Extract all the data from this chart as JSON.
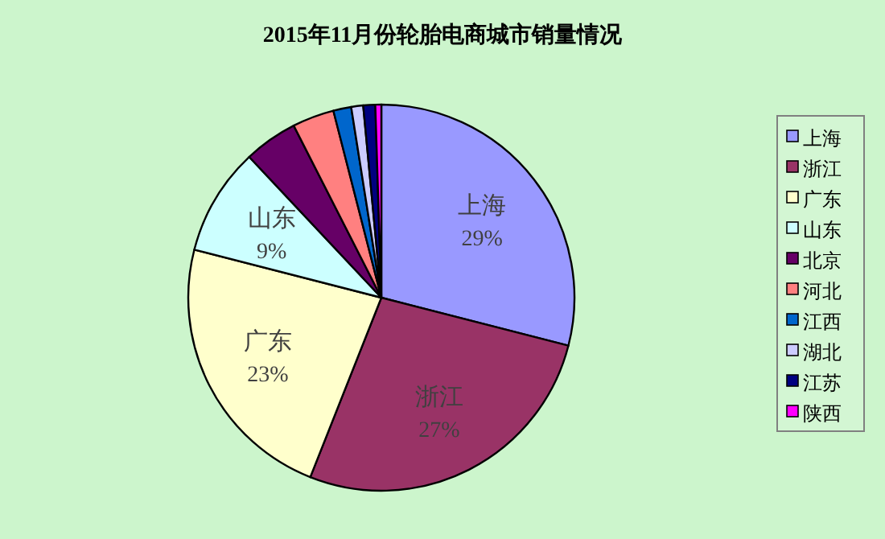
{
  "chart_data": {
    "type": "pie",
    "title": "2015年11月份轮胎电商城市销量情况",
    "categories": [
      "上海",
      "浙江",
      "广东",
      "山东",
      "北京",
      "河北",
      "江西",
      "湖北",
      "江苏",
      "陕西"
    ],
    "values": [
      29,
      27,
      23,
      9,
      4.5,
      3.5,
      1.5,
      1,
      1,
      0.5
    ],
    "colors": [
      "#9999ff",
      "#993366",
      "#ffffcc",
      "#ccffff",
      "#660066",
      "#ff8080",
      "#0066cc",
      "#ccccff",
      "#000080",
      "#ff00ff"
    ],
    "value_labels": [
      "29%",
      "27%",
      "23%",
      "9%",
      null,
      null,
      null,
      null,
      null,
      null
    ],
    "legend": "right"
  }
}
